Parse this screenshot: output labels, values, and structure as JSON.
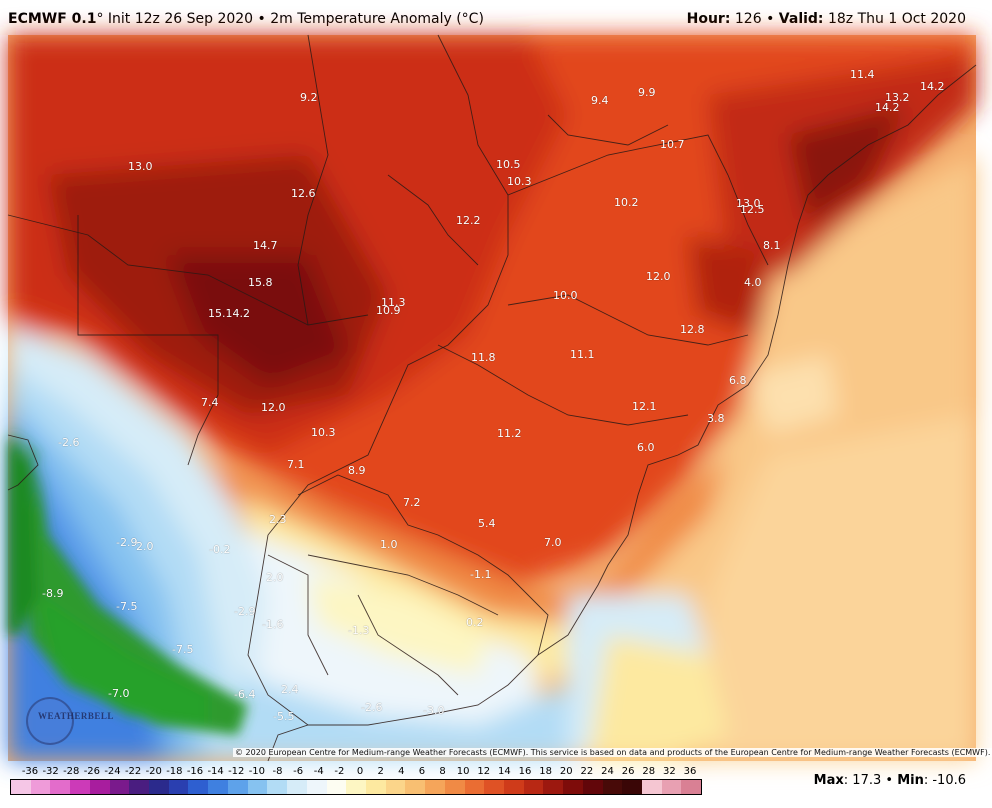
{
  "header": {
    "model": "ECMWF 0.1",
    "subtitle": "° Init 12z 26 Sep 2020 • 2m Temperature Anomaly (°C)",
    "hour_label": "Hour:",
    "hour_value": "126",
    "valid_label": "Valid:",
    "valid_value": "18z Thu 1 Oct 2020"
  },
  "map_labels": [
    {
      "t": "9.2"
    },
    {
      "t": "9.4"
    },
    {
      "t": "9.9"
    },
    {
      "t": "11.4"
    },
    {
      "t": "14.2"
    },
    {
      "t": "13.2"
    },
    {
      "t": "14.2"
    },
    {
      "t": "13.0"
    },
    {
      "t": "12.6"
    },
    {
      "t": "10.5"
    },
    {
      "t": "10.3"
    },
    {
      "t": "10.7"
    },
    {
      "t": "10.2"
    },
    {
      "t": "13.0"
    },
    {
      "t": "12.5"
    },
    {
      "t": "14.7"
    },
    {
      "t": "12.2"
    },
    {
      "t": "8.1"
    },
    {
      "t": "15.8"
    },
    {
      "t": "12.0"
    },
    {
      "t": "4.0"
    },
    {
      "t": "11.3"
    },
    {
      "t": "10.0"
    },
    {
      "t": "15.14.2"
    },
    {
      "t": "10.9"
    },
    {
      "t": "12.8"
    },
    {
      "t": "11.8"
    },
    {
      "t": "11.1"
    },
    {
      "t": "6.8"
    },
    {
      "t": "7.4"
    },
    {
      "t": "12.0"
    },
    {
      "t": "12.1"
    },
    {
      "t": "3.8"
    },
    {
      "t": "-2.6"
    },
    {
      "t": "10.3"
    },
    {
      "t": "11.2"
    },
    {
      "t": "6.0"
    },
    {
      "t": "7.1"
    },
    {
      "t": "8.9"
    },
    {
      "t": "7.2"
    },
    {
      "t": "2.3"
    },
    {
      "t": "5.4"
    },
    {
      "t": "-2.9"
    },
    {
      "t": "2.0"
    },
    {
      "t": "-0.2"
    },
    {
      "t": "1.0"
    },
    {
      "t": "7.0"
    },
    {
      "t": "2.0"
    },
    {
      "t": "-1.1"
    },
    {
      "t": "-8.9"
    },
    {
      "t": "-7.5"
    },
    {
      "t": "-2.9"
    },
    {
      "t": "-1.6"
    },
    {
      "t": "-1.3"
    },
    {
      "t": "0.2"
    },
    {
      "t": "-7.5"
    },
    {
      "t": "-7.0"
    },
    {
      "t": "-6.4"
    },
    {
      "t": "2.4"
    },
    {
      "t": "-5.5"
    },
    {
      "t": "-2.6"
    },
    {
      "t": "-3.0"
    }
  ],
  "copyright": "© 2020 European Centre for Medium-range Weather Forecasts (ECMWF). This service is based on data and products of the European Centre for Medium-range Weather Forecasts (ECMWF).",
  "logo_text": "WEATHERBELL",
  "colorbar": {
    "ticks": [
      "-36",
      "-32",
      "-28",
      "-26",
      "-24",
      "-22",
      "-20",
      "-18",
      "-16",
      "-14",
      "-12",
      "-10",
      "-8",
      "-6",
      "-4",
      "-2",
      "0",
      "2",
      "4",
      "6",
      "8",
      "10",
      "12",
      "14",
      "16",
      "18",
      "20",
      "22",
      "24",
      "26",
      "28",
      "32",
      "36"
    ],
    "colors": [
      "#f5c6e6",
      "#ef9bd9",
      "#e36ccb",
      "#cc3ab8",
      "#a81d9e",
      "#7a1a8c",
      "#4a1d80",
      "#2b2a8c",
      "#2a3fb0",
      "#2e5fd0",
      "#3f80e0",
      "#5ea2ea",
      "#86c2f0",
      "#b2dcf5",
      "#d6ecf8",
      "#eef6fb",
      "#fdfdf2",
      "#fdf6c3",
      "#fde9a0",
      "#fbd58a",
      "#f8bf72",
      "#f5a55a",
      "#f08a45",
      "#ea6d33",
      "#df5225",
      "#cf3b1a",
      "#b82814",
      "#9c180f",
      "#7e0c0a",
      "#62060a",
      "#480a08",
      "#3a0606",
      "#f5c6d2",
      "#e8a0b2",
      "#d98094"
    ]
  },
  "max_label": "Max",
  "max_value": "17.3",
  "min_label": "Min",
  "min_value": "-10.6"
}
